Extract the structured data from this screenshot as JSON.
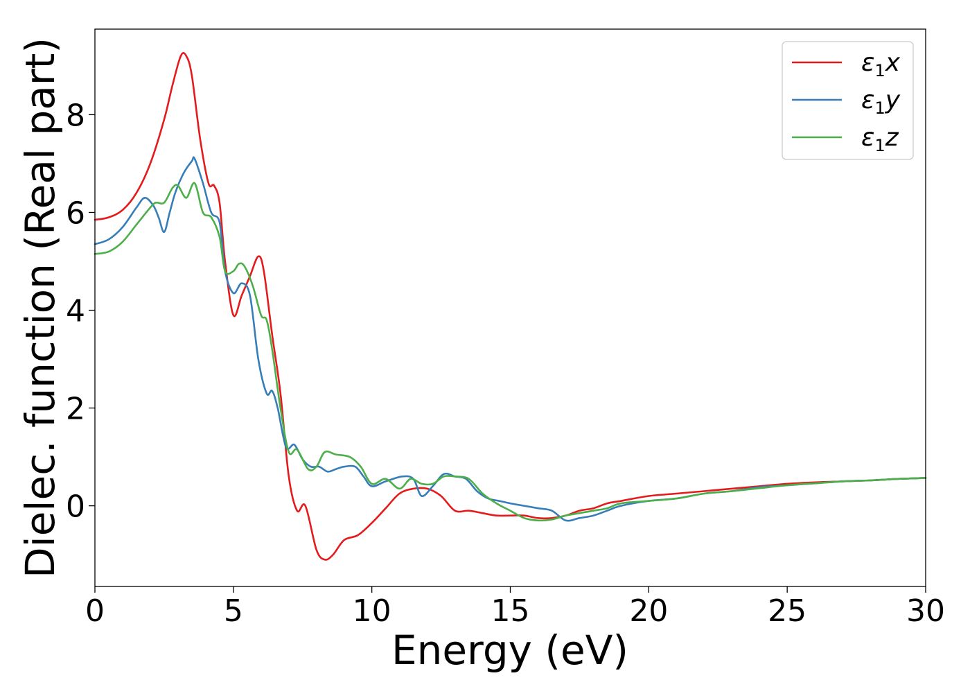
{
  "chart_data": {
    "type": "line",
    "title": "",
    "xlabel": "Energy (eV)",
    "ylabel": "Dielec. function (Real part)",
    "xlim": [
      0,
      30
    ],
    "ylim": [
      -1.65,
      9.75
    ],
    "xticks": [
      0,
      5,
      10,
      15,
      20,
      25,
      30
    ],
    "yticks": [
      0,
      2,
      4,
      6,
      8
    ],
    "grid": false,
    "legend_position": "top-right",
    "series": [
      {
        "name": "ε1x",
        "label_base": "ε",
        "label_sub": "1",
        "label_suffix": "x",
        "color": "#e41a1c",
        "x": [
          0,
          0.5,
          1.0,
          1.5,
          2.0,
          2.5,
          2.8,
          3.1,
          3.3,
          3.5,
          3.8,
          4.1,
          4.3,
          4.5,
          4.7,
          5.0,
          5.3,
          5.6,
          5.9,
          6.1,
          6.4,
          6.7,
          7.0,
          7.3,
          7.6,
          8.0,
          8.3,
          8.6,
          9.0,
          9.5,
          10.0,
          10.5,
          11.0,
          11.5,
          12.0,
          12.5,
          13.0,
          13.5,
          14.0,
          14.5,
          15.0,
          15.5,
          16.0,
          16.5,
          17.0,
          17.5,
          18.0,
          18.5,
          19.0,
          20.0,
          21.0,
          22.0,
          23.0,
          24.0,
          25.0,
          26.0,
          27.0,
          28.0,
          29.0,
          30.0
        ],
        "y": [
          5.85,
          5.9,
          6.05,
          6.4,
          7.0,
          7.9,
          8.6,
          9.2,
          9.2,
          8.8,
          7.5,
          6.6,
          6.55,
          6.2,
          5.0,
          3.9,
          4.3,
          4.7,
          5.1,
          4.8,
          3.5,
          2.3,
          0.6,
          -0.1,
          0.0,
          -0.9,
          -1.1,
          -1.0,
          -0.7,
          -0.6,
          -0.35,
          -0.05,
          0.25,
          0.35,
          0.35,
          0.2,
          -0.1,
          -0.1,
          -0.15,
          -0.2,
          -0.2,
          -0.2,
          -0.25,
          -0.25,
          -0.2,
          -0.1,
          -0.05,
          0.05,
          0.1,
          0.2,
          0.25,
          0.3,
          0.35,
          0.4,
          0.45,
          0.48,
          0.5,
          0.52,
          0.55,
          0.57
        ]
      },
      {
        "name": "ε1y",
        "label_base": "ε",
        "label_sub": "1",
        "label_suffix": "y",
        "color": "#377eb8",
        "x": [
          0,
          0.5,
          1.0,
          1.5,
          1.8,
          2.1,
          2.3,
          2.5,
          2.7,
          2.9,
          3.2,
          3.5,
          3.6,
          3.9,
          4.2,
          4.5,
          4.7,
          5.0,
          5.3,
          5.6,
          5.9,
          6.2,
          6.4,
          6.6,
          6.9,
          7.2,
          7.5,
          7.8,
          8.1,
          8.4,
          8.7,
          9.0,
          9.4,
          9.7,
          10.0,
          10.5,
          11.1,
          11.5,
          11.8,
          12.2,
          12.6,
          13.0,
          13.4,
          13.8,
          14.2,
          14.6,
          15.0,
          15.5,
          16.0,
          16.5,
          17.0,
          17.5,
          18.0,
          18.5,
          19.0,
          20.0,
          21.0,
          22.0,
          23.0,
          24.0,
          25.0,
          26.0,
          27.0,
          28.0,
          29.0,
          30.0
        ],
        "y": [
          5.35,
          5.45,
          5.7,
          6.1,
          6.3,
          6.15,
          5.9,
          5.6,
          6.0,
          6.4,
          6.8,
          7.05,
          7.1,
          6.6,
          6.0,
          5.8,
          4.8,
          4.35,
          4.55,
          4.3,
          3.0,
          2.3,
          2.35,
          2.0,
          1.2,
          1.25,
          0.95,
          0.8,
          0.8,
          0.7,
          0.75,
          0.8,
          0.8,
          0.6,
          0.4,
          0.5,
          0.6,
          0.55,
          0.2,
          0.4,
          0.65,
          0.6,
          0.55,
          0.3,
          0.15,
          0.1,
          0.05,
          0.0,
          -0.05,
          -0.1,
          -0.3,
          -0.25,
          -0.2,
          -0.1,
          0.0,
          0.1,
          0.15,
          0.25,
          0.3,
          0.38,
          0.42,
          0.46,
          0.5,
          0.52,
          0.55,
          0.57
        ]
      },
      {
        "name": "ε1z",
        "label_base": "ε",
        "label_sub": "1",
        "label_suffix": "z",
        "color": "#4daf4a",
        "x": [
          0,
          0.5,
          1.0,
          1.5,
          2.0,
          2.2,
          2.5,
          2.8,
          3.0,
          3.3,
          3.6,
          3.9,
          4.2,
          4.5,
          4.7,
          5.0,
          5.2,
          5.4,
          5.7,
          6.0,
          6.2,
          6.4,
          6.7,
          7.0,
          7.3,
          7.7,
          8.0,
          8.3,
          8.7,
          9.2,
          9.6,
          10.0,
          10.5,
          11.0,
          11.4,
          11.8,
          12.2,
          12.6,
          13.0,
          13.5,
          14.0,
          14.5,
          15.0,
          15.5,
          16.0,
          16.5,
          17.0,
          17.5,
          18.0,
          18.5,
          19.0,
          20.0,
          21.0,
          22.0,
          23.0,
          24.0,
          25.0,
          26.0,
          27.0,
          28.0,
          29.0,
          30.0
        ],
        "y": [
          5.15,
          5.2,
          5.4,
          5.75,
          6.1,
          6.2,
          6.2,
          6.5,
          6.55,
          6.3,
          6.6,
          6.0,
          5.9,
          5.5,
          4.8,
          4.8,
          4.95,
          4.9,
          4.5,
          3.9,
          3.8,
          3.2,
          2.0,
          1.1,
          1.15,
          0.75,
          0.8,
          1.1,
          1.05,
          1.0,
          0.8,
          0.45,
          0.55,
          0.35,
          0.55,
          0.45,
          0.45,
          0.6,
          0.6,
          0.55,
          0.25,
          0.05,
          -0.1,
          -0.25,
          -0.3,
          -0.28,
          -0.2,
          -0.15,
          -0.1,
          -0.05,
          0.05,
          0.1,
          0.15,
          0.25,
          0.3,
          0.36,
          0.42,
          0.46,
          0.5,
          0.52,
          0.55,
          0.57
        ]
      }
    ]
  }
}
